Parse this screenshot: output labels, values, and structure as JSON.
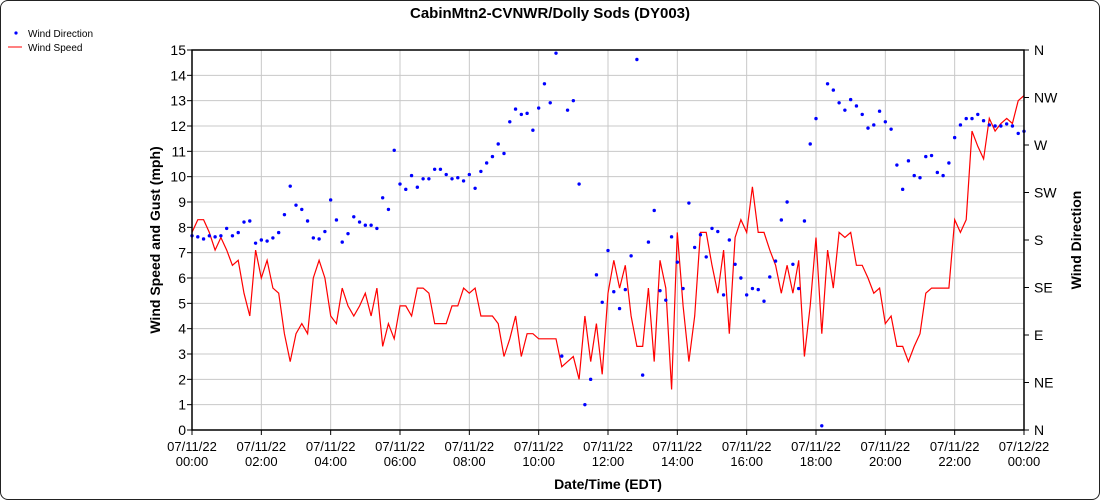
{
  "chart_data": {
    "type": "line",
    "title": "CabinMtn2-CVNWR/Dolly Sods (DY003)",
    "xlabel": "Date/Time (EDT)",
    "ylabel": "Wind Speed and Gust (mph)",
    "y2label": "Wind Direction",
    "ylim": [
      0,
      15
    ],
    "y2lim": [
      0,
      360
    ],
    "xlim_hours": [
      0,
      24
    ],
    "interval_minutes": 10,
    "grid": true,
    "legend_position": "top-left",
    "yticks": [
      "0",
      "1",
      "2",
      "3",
      "4",
      "5",
      "6",
      "7",
      "8",
      "9",
      "10",
      "11",
      "12",
      "13",
      "14",
      "15"
    ],
    "y2ticks": [
      "N",
      "NE",
      "E",
      "SE",
      "S",
      "SW",
      "W",
      "NW",
      "N"
    ],
    "xticks": [
      {
        "date": "07/11/22",
        "time": "00:00"
      },
      {
        "date": "07/11/22",
        "time": "02:00"
      },
      {
        "date": "07/11/22",
        "time": "04:00"
      },
      {
        "date": "07/11/22",
        "time": "06:00"
      },
      {
        "date": "07/11/22",
        "time": "08:00"
      },
      {
        "date": "07/11/22",
        "time": "10:00"
      },
      {
        "date": "07/11/22",
        "time": "12:00"
      },
      {
        "date": "07/11/22",
        "time": "14:00"
      },
      {
        "date": "07/11/22",
        "time": "16:00"
      },
      {
        "date": "07/11/22",
        "time": "18:00"
      },
      {
        "date": "07/11/22",
        "time": "20:00"
      },
      {
        "date": "07/11/22",
        "time": "22:00"
      },
      {
        "date": "07/12/22",
        "time": "00:00"
      }
    ],
    "series": [
      {
        "name": "Wind Direction",
        "color": "#0000ff",
        "style": "points",
        "axis": "right",
        "values": [
          184,
          183,
          181,
          184,
          183,
          184,
          191,
          184,
          187,
          197,
          198,
          177,
          180,
          179,
          182,
          187,
          204,
          231,
          213,
          209,
          198,
          182,
          181,
          188,
          218,
          199,
          178,
          186,
          202,
          197,
          194,
          194,
          191,
          220,
          209,
          265,
          233,
          228,
          241,
          230,
          238,
          238,
          247,
          247,
          242,
          238,
          239,
          236,
          242,
          229,
          245,
          253,
          259,
          271,
          262,
          292,
          304,
          299,
          300,
          284,
          305,
          328,
          310,
          357,
          70,
          303,
          312,
          233,
          24,
          48,
          147,
          121,
          170,
          131,
          115,
          133,
          165,
          351,
          52,
          178,
          208,
          132,
          123,
          183,
          159,
          134,
          215,
          173,
          185,
          164,
          191,
          188,
          128,
          180,
          157,
          144,
          128,
          134,
          133,
          122,
          145,
          160,
          199,
          216,
          157,
          134,
          198,
          271,
          295,
          4,
          328,
          322,
          310,
          303,
          313,
          307,
          299,
          286,
          289,
          302,
          292,
          285,
          251,
          228,
          255,
          241,
          239,
          259,
          260,
          244,
          241,
          253,
          277,
          289,
          295,
          295,
          299,
          293,
          289,
          288,
          288,
          290,
          288,
          281,
          283
        ]
      },
      {
        "name": "Wind Speed",
        "color": "#ff0000",
        "style": "line",
        "axis": "left",
        "values": [
          7.8,
          8.3,
          8.3,
          7.8,
          7.1,
          7.6,
          7.1,
          6.5,
          6.7,
          5.4,
          4.5,
          7.1,
          6.0,
          6.7,
          5.6,
          5.4,
          3.8,
          2.7,
          3.8,
          4.2,
          3.8,
          6.0,
          6.7,
          6.0,
          4.5,
          4.2,
          5.6,
          4.9,
          4.5,
          4.9,
          5.4,
          4.5,
          5.6,
          3.3,
          4.2,
          3.6,
          4.9,
          4.9,
          4.5,
          5.6,
          5.6,
          5.4,
          4.2,
          4.2,
          4.2,
          4.9,
          4.9,
          5.6,
          5.4,
          5.6,
          4.5,
          4.5,
          4.5,
          4.2,
          2.9,
          3.6,
          4.5,
          2.9,
          3.8,
          3.8,
          3.6,
          3.6,
          3.6,
          3.6,
          2.5,
          2.7,
          2.9,
          2.0,
          4.5,
          2.7,
          4.2,
          2.2,
          5.4,
          6.7,
          5.6,
          6.5,
          4.5,
          3.3,
          3.3,
          5.6,
          2.7,
          6.7,
          5.6,
          1.6,
          7.8,
          4.9,
          2.7,
          4.5,
          7.8,
          7.8,
          6.5,
          5.4,
          7.1,
          3.8,
          7.6,
          8.3,
          7.8,
          9.6,
          7.8,
          7.8,
          7.1,
          6.5,
          5.4,
          6.5,
          5.4,
          6.7,
          2.9,
          4.9,
          7.6,
          3.8,
          7.1,
          5.6,
          7.8,
          7.6,
          7.8,
          6.5,
          6.5,
          6.0,
          5.4,
          5.6,
          4.2,
          4.5,
          3.3,
          3.3,
          2.7,
          3.3,
          3.8,
          5.4,
          5.6,
          5.6,
          5.6,
          5.6,
          8.3,
          7.8,
          8.3,
          11.8,
          11.2,
          10.7,
          12.3,
          11.8,
          12.1,
          12.3,
          12.1,
          13.0,
          13.2
        ]
      }
    ]
  }
}
